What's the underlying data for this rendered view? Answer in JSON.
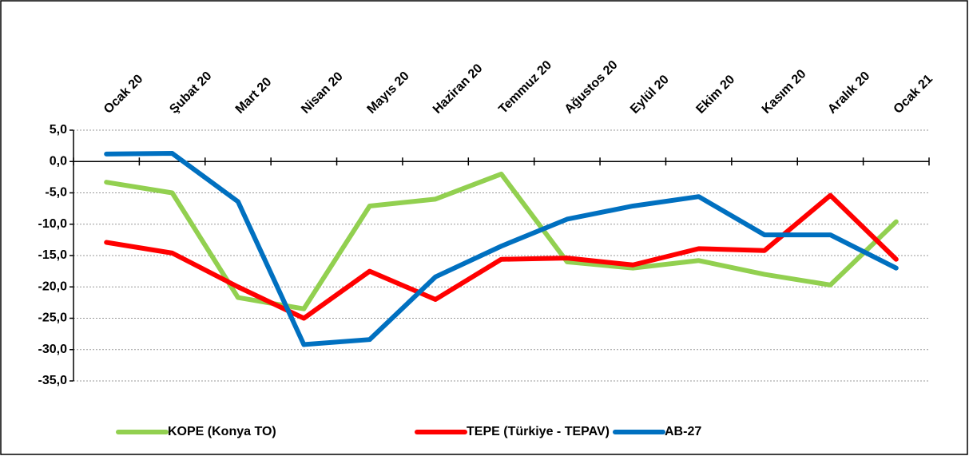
{
  "chart_data": {
    "type": "line",
    "categories": [
      "Ocak 20",
      "Şubat 20",
      "Mart 20",
      "Nisan 20",
      "Mayıs 20",
      "Haziran 20",
      "Temmuz 20",
      "Ağustos 20",
      "Eylül 20",
      "Ekim 20",
      "Kasım 20",
      "Aralık 20",
      "Ocak 21"
    ],
    "series": [
      {
        "name": "KOPE (Konya TO)",
        "color": "#92d050",
        "values": [
          -3.3,
          -5.0,
          -21.7,
          -23.5,
          -7.1,
          -6.0,
          -2.0,
          -16.0,
          -17.0,
          -15.8,
          -18.0,
          -19.7,
          -9.6
        ]
      },
      {
        "name": "TEPE (Türkiye - TEPAV)",
        "color": "#ff0000",
        "values": [
          -12.9,
          -14.6,
          -20.0,
          -25.0,
          -17.5,
          -22.0,
          -15.6,
          -15.4,
          -16.5,
          -13.9,
          -14.2,
          -5.4,
          -15.6
        ]
      },
      {
        "name": "AB-27",
        "color": "#0070c0",
        "values": [
          1.2,
          1.3,
          -6.4,
          -29.2,
          -28.4,
          -18.4,
          -13.5,
          -9.2,
          -7.1,
          -5.6,
          -11.7,
          -11.7,
          -17.0
        ]
      }
    ],
    "ylim": [
      -35,
      5
    ],
    "yticks": [
      {
        "value": 5,
        "label": "5,0"
      },
      {
        "value": 0,
        "label": "0,0"
      },
      {
        "value": -5,
        "label": "-5,0"
      },
      {
        "value": -10,
        "label": "-10,0"
      },
      {
        "value": -15,
        "label": "-15,0"
      },
      {
        "value": -20,
        "label": "-20,0"
      },
      {
        "value": -25,
        "label": "-25,0"
      },
      {
        "value": -30,
        "label": "-30,0"
      },
      {
        "value": -35,
        "label": "-35,0"
      }
    ],
    "grid": true,
    "legend": "bottom"
  }
}
